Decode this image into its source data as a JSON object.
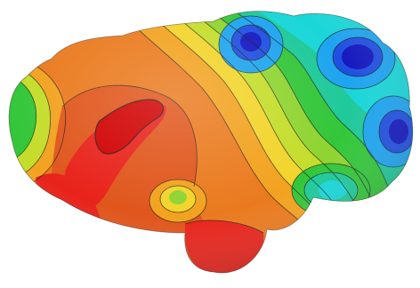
{
  "image": {
    "subject": "molecular-surface-potential-map",
    "background": "#ffffff",
    "palette": {
      "deep_red": "#d00000",
      "red": "#e8231b",
      "orange_red": "#e0561c",
      "orange": "#ea7a1e",
      "amber": "#f2a21f",
      "yellow": "#f2d42a",
      "yellow_green": "#c4dd2a",
      "light_green": "#8fd431",
      "green": "#33c63a",
      "teal_green": "#1fc99a",
      "cyan": "#1ad6d8",
      "sky_blue": "#1ea4ef",
      "blue": "#1f4fe0",
      "deep_blue": "#1418bf",
      "contour_line": "#1a1a1a"
    }
  }
}
